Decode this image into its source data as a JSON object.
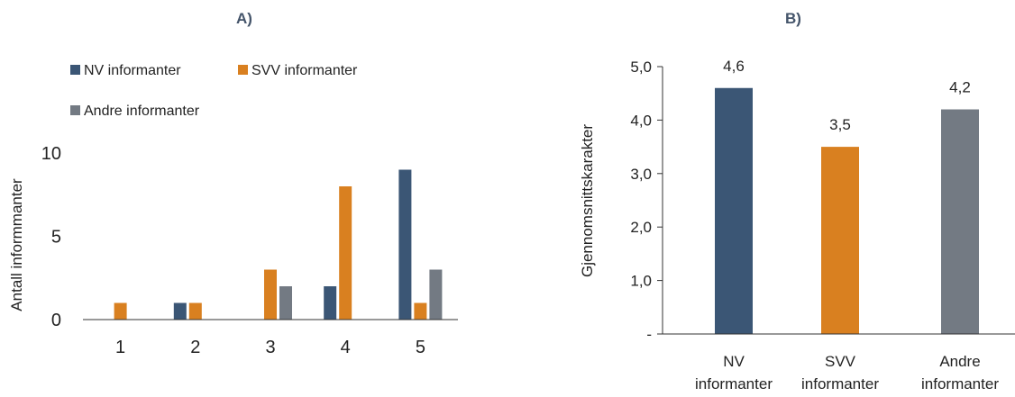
{
  "colors": {
    "nv": "#3b5675",
    "svv": "#d98020",
    "andre": "#737a83"
  },
  "chart_data": [
    {
      "type": "bar",
      "title": "A)",
      "xlabel": "",
      "ylabel": "Antall informmanter",
      "categories": [
        "1",
        "2",
        "3",
        "4",
        "5"
      ],
      "yticks": [
        "0",
        "5",
        "10"
      ],
      "ylim": [
        0,
        10
      ],
      "legend_position": "top-left",
      "series": [
        {
          "name": "NV informanter",
          "values": [
            0,
            1,
            0,
            2,
            9
          ]
        },
        {
          "name": "SVV informanter",
          "values": [
            1,
            1,
            3,
            8,
            1
          ]
        },
        {
          "name": "Andre informanter",
          "values": [
            0,
            0,
            2,
            0,
            3
          ]
        }
      ],
      "grid": false
    },
    {
      "type": "bar",
      "title": "B)",
      "xlabel": "",
      "ylabel": "Gjennomsnittskarakter",
      "categories": [
        [
          "NV",
          "informanter"
        ],
        [
          "SVV",
          "informanter"
        ],
        [
          "Andre",
          "informanter"
        ]
      ],
      "yticks": [
        "-",
        "1,0",
        "2,0",
        "3,0",
        "4,0",
        "5,0"
      ],
      "ylim": [
        0,
        5
      ],
      "values": [
        4.6,
        3.5,
        4.2
      ],
      "data_labels": [
        "4,6",
        "3,5",
        "4,2"
      ],
      "grid": false
    }
  ]
}
